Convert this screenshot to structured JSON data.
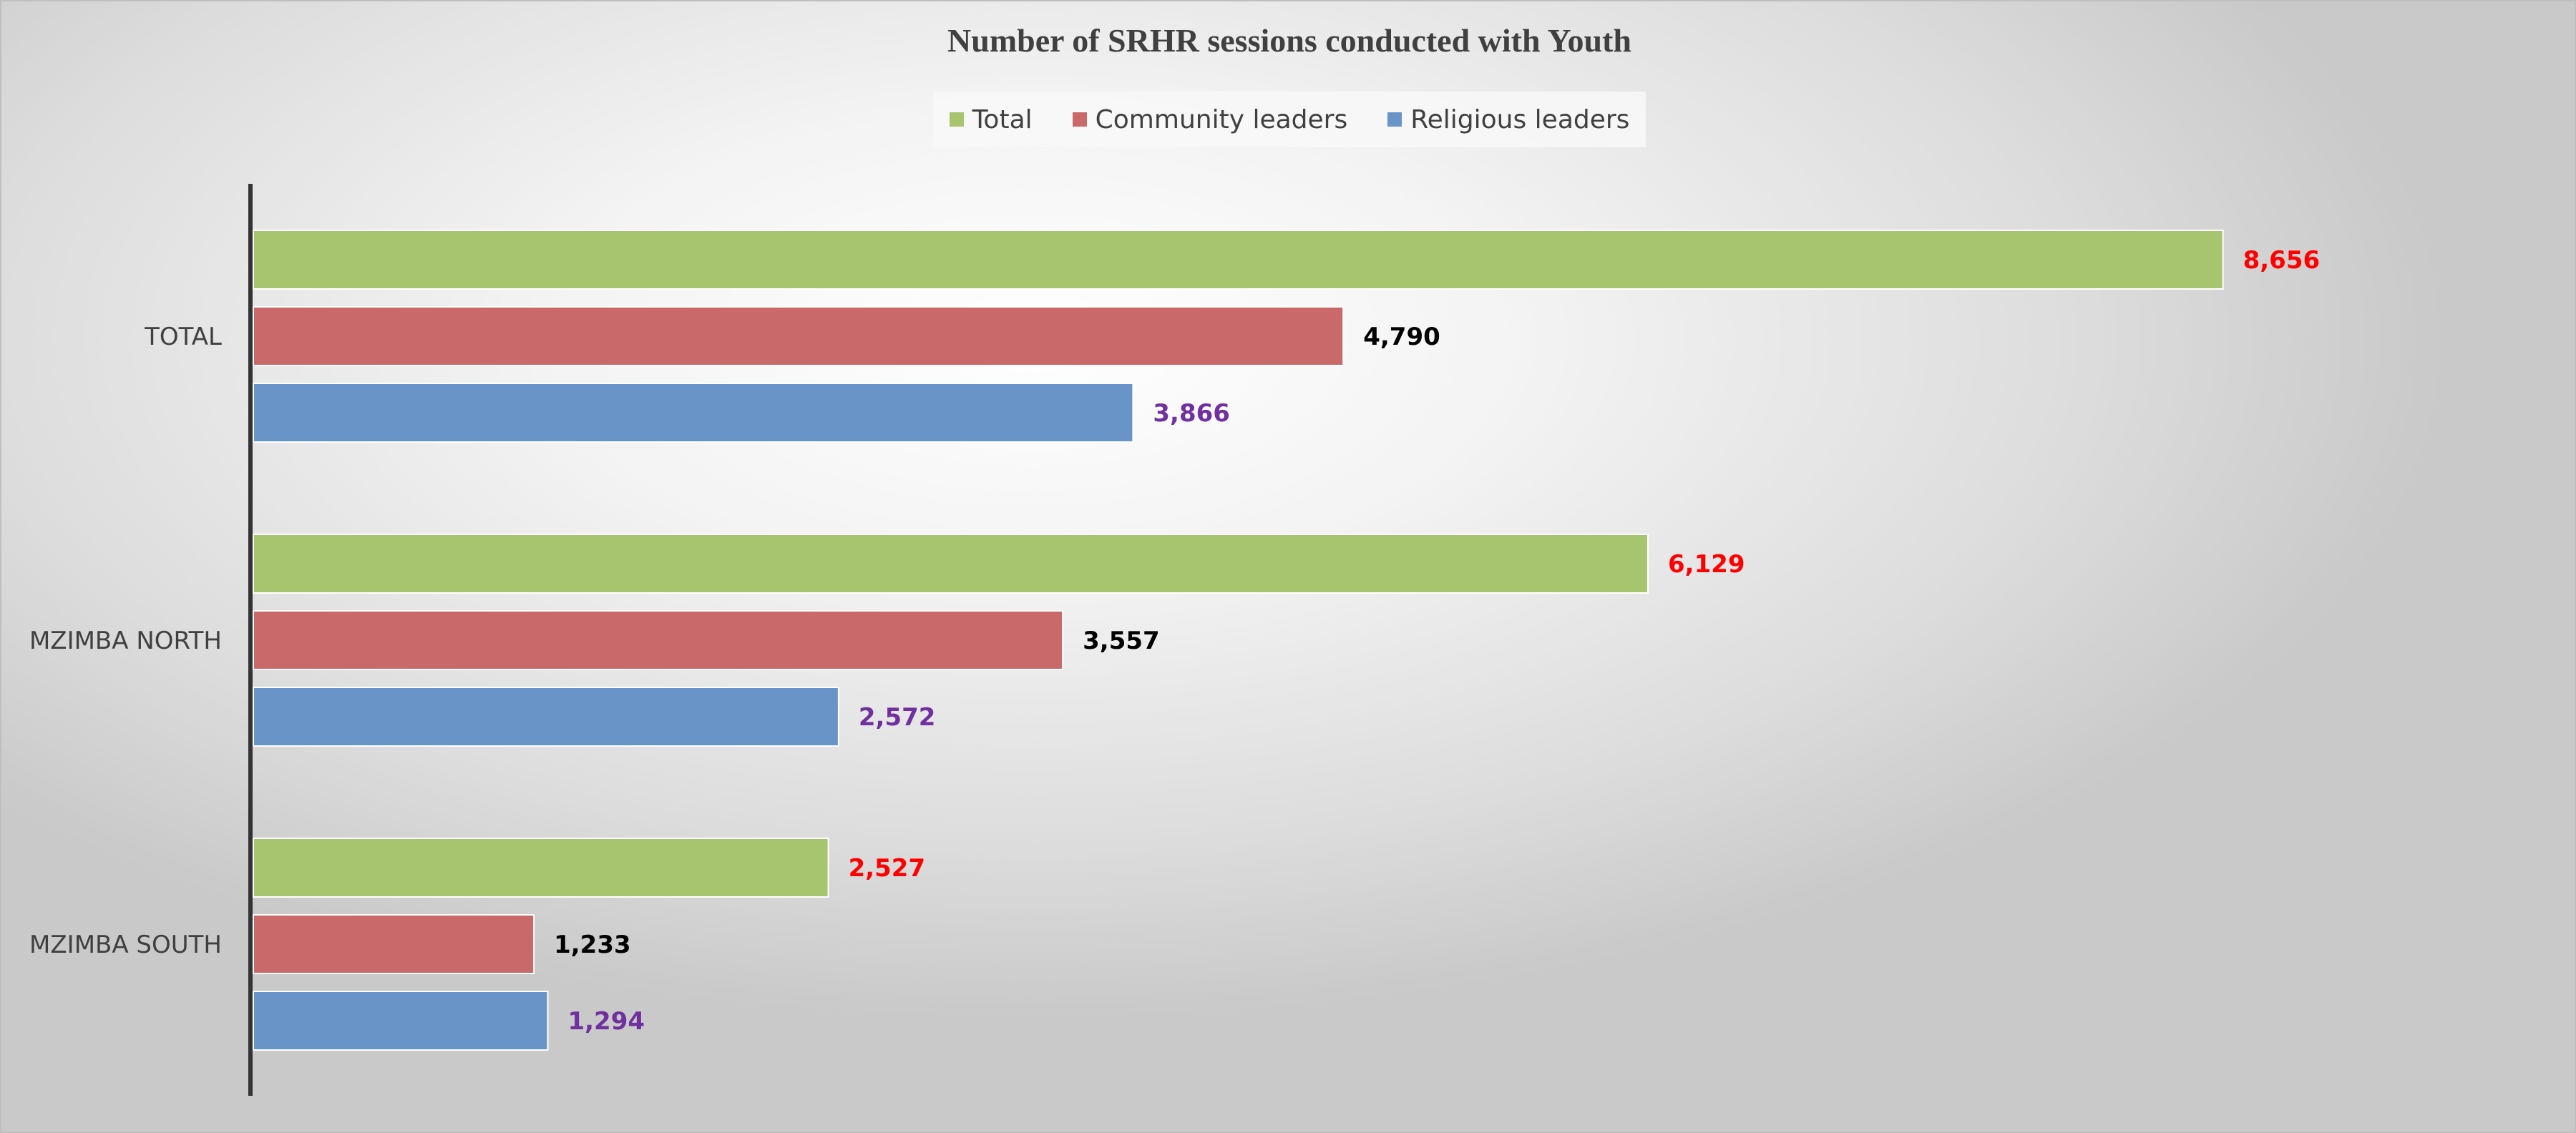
{
  "chart_data": {
    "type": "bar",
    "orientation": "horizontal",
    "title": "Number of SRHR sessions conducted with Youth",
    "categories": [
      "TOTAL",
      "MZIMBA NORTH",
      "MZIMBA SOUTH"
    ],
    "series": [
      {
        "name": "Total",
        "color": "#a7c46f",
        "label_color": "#ff0000",
        "values": [
          8656,
          6129,
          2527
        ],
        "labels": [
          "8,656",
          "6,129",
          "2,527"
        ]
      },
      {
        "name": "Community leaders",
        "color": "#c96969",
        "label_color": "#000000",
        "values": [
          4790,
          3557,
          1233
        ],
        "labels": [
          "4,790",
          "3,557",
          "1,233"
        ]
      },
      {
        "name": "Religious leaders",
        "color": "#6894c8",
        "label_color": "#7030a0",
        "values": [
          3866,
          2572,
          1294
        ],
        "labels": [
          "3,866",
          "2,572",
          "1,294"
        ]
      }
    ],
    "xlim": [
      0,
      10000
    ],
    "grid": false,
    "legend_position": "top"
  }
}
